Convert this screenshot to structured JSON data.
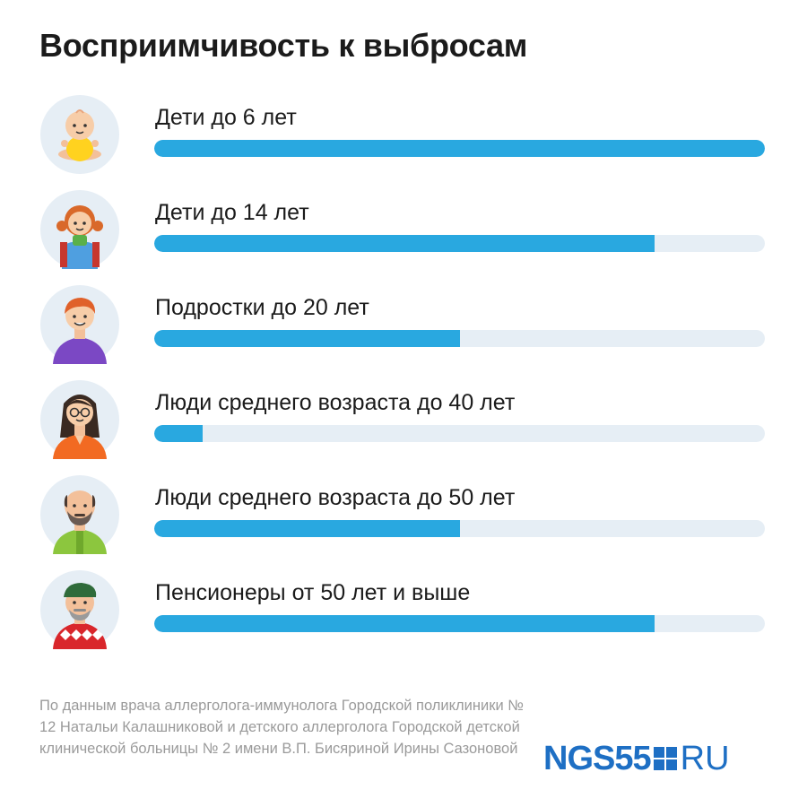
{
  "title": "Восприимчивость к выбросам",
  "chart_data": {
    "type": "bar",
    "title": "Восприимчивость к выбросам",
    "orientation": "horizontal",
    "categories": [
      "Дети до 6 лет",
      "Дети до 14 лет",
      "Подростки до 20 лет",
      "Люди среднего возраста до 40 лет",
      "Люди среднего возраста до 50 лет",
      "Пенсионеры от 50 лет и выше"
    ],
    "values": [
      100,
      82,
      50,
      8,
      50,
      82
    ],
    "ylim": [
      0,
      100
    ],
    "grid": false,
    "bar_color": "#29a8e0",
    "track_color": "#e6eef5"
  },
  "avatars": [
    "baby-icon",
    "girl-icon",
    "teenager-icon",
    "woman-glasses-icon",
    "bald-man-beard-icon",
    "old-man-cap-icon"
  ],
  "source": "По данным врача аллерголога-иммунолога Городской поликлиники № 12 Натальи Калашниковой и детского аллерголога Городской детской клинической больницы № 2 имени В.П. Бисяриной Ирины Сазоновой",
  "logo": {
    "left": "NGS55",
    "right": "RU",
    "color": "#1e6fc4"
  }
}
